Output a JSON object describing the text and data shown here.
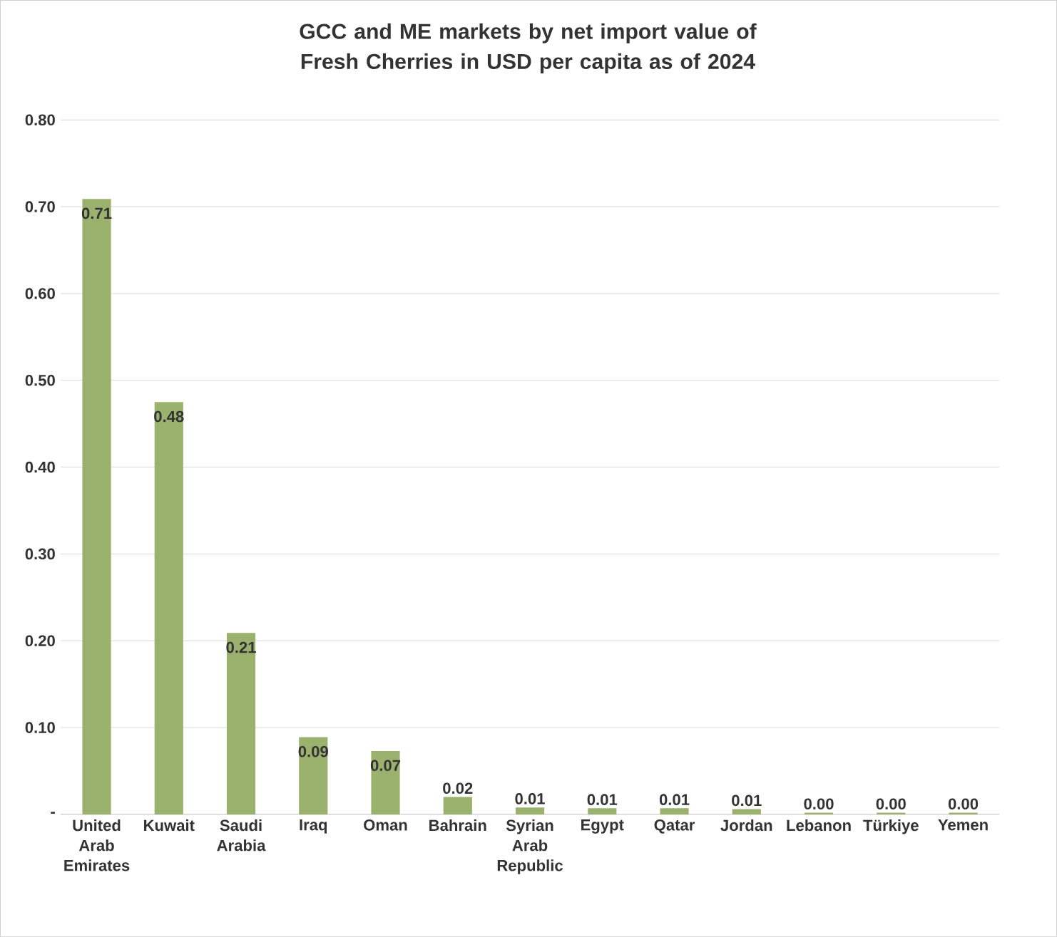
{
  "chart_data": {
    "type": "bar",
    "title": "GCC and ME markets by net import value of Fresh Cherries in USD per capita as of 2024",
    "categories": [
      "United Arab Emirates",
      "Kuwait",
      "Saudi Arabia",
      "Iraq",
      "Oman",
      "Bahrain",
      "Syrian Arab Republic",
      "Egypt",
      "Qatar",
      "Jordan",
      "Lebanon",
      "Türkiye",
      "Yemen"
    ],
    "values": [
      0.709,
      0.475,
      0.209,
      0.089,
      0.073,
      0.02,
      0.008,
      0.007,
      0.007,
      0.006,
      0.002,
      0.002,
      0.002
    ],
    "value_labels": [
      "0.71",
      "0.48",
      "0.21",
      "0.09",
      "0.07",
      "0.02",
      "0.01",
      "0.01",
      "0.01",
      "0.01",
      "0.00",
      "0.00",
      "0.00"
    ],
    "color": "#9bb26f",
    "ylim": [
      0,
      0.8
    ],
    "yticks": [
      {
        "value": 0,
        "label": "-"
      },
      {
        "value": 0.1,
        "label": "0.10"
      },
      {
        "value": 0.2,
        "label": "0.20"
      },
      {
        "value": 0.3,
        "label": "0.30"
      },
      {
        "value": 0.4,
        "label": "0.40"
      },
      {
        "value": 0.5,
        "label": "0.50"
      },
      {
        "value": 0.6,
        "label": "0.60"
      },
      {
        "value": 0.7,
        "label": "0.70"
      },
      {
        "value": 0.8,
        "label": "0.80"
      }
    ],
    "grid": "y"
  }
}
